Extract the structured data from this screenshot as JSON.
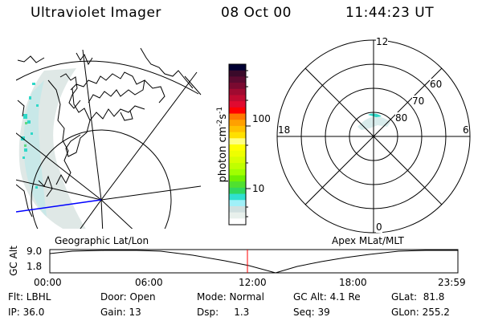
{
  "header": {
    "instrument": "Ultraviolet Imager",
    "date": "08 Oct 00",
    "time": "11:44:23 UT"
  },
  "colorbar": {
    "label_main": "photon cm",
    "label_exp1": "-2",
    "label_mid": "s",
    "label_exp2": "-1",
    "tick_labels": [
      "100",
      "10"
    ],
    "colors": [
      "#000033",
      "#3a0a2a",
      "#5c0a30",
      "#7a0a30",
      "#a00a30",
      "#c00a30",
      "#e00a30",
      "#ff0000",
      "#ff7800",
      "#ffa000",
      "#ffc000",
      "#ffe000",
      "#ffff80",
      "#ffff00",
      "#eeff00",
      "#d8ff00",
      "#c0ff00",
      "#a0ff00",
      "#70f000",
      "#50e030",
      "#30d860",
      "#30e0d0",
      "#a0f0f8",
      "#d0e0e0",
      "#e8f0ec",
      "#ffffff"
    ]
  },
  "polar": {
    "mlt_labels": {
      "top": "12",
      "right": "6",
      "bottom": "0",
      "left": "18"
    },
    "lat_labels": [
      "60",
      "70",
      "80"
    ]
  },
  "timeline": {
    "left_title": "Geographic Lat/Lon",
    "right_title": "Apex MLat/MLT",
    "ylabel": "GC Alt",
    "y_ticks": [
      "9.0",
      "1.8"
    ],
    "x_ticks": [
      "00:00",
      "06:00",
      "12:00",
      "18:00",
      "23:59"
    ],
    "current_time_marker_color": "#ff0000"
  },
  "info": {
    "row1": [
      "Flt: LBHL",
      "Door: Open",
      "Mode: Normal",
      "GC Alt: 4.1 Re",
      "GLat:  81.8"
    ],
    "row2": [
      "IP: 36.0",
      "Gain: 13",
      "Dsp:     1.3",
      "Seq: 39",
      "GLon: 255.2"
    ]
  }
}
